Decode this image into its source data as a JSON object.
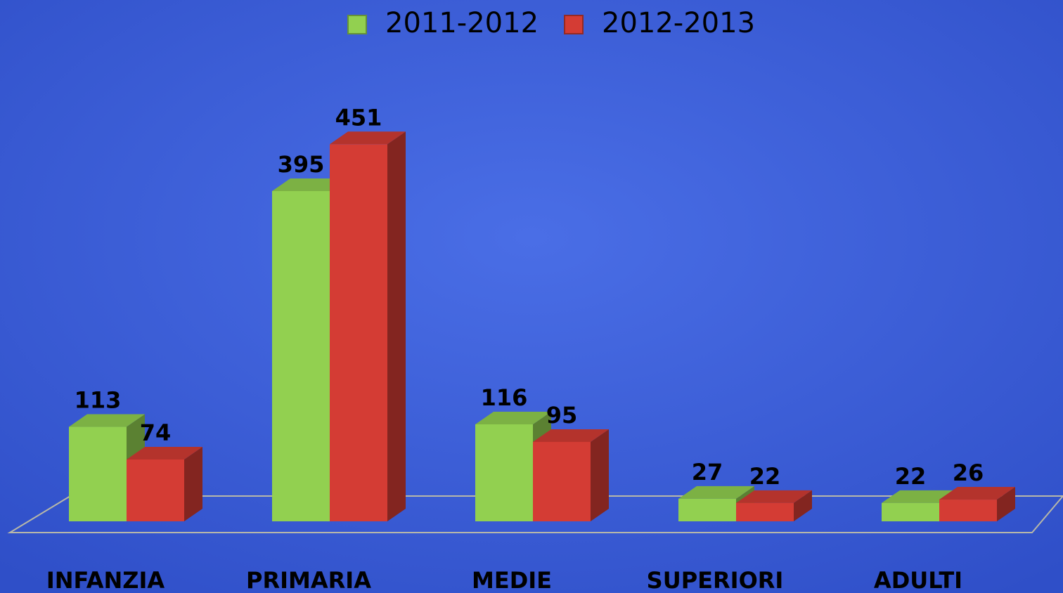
{
  "chart_data": {
    "type": "bar3d",
    "categories": [
      "INFANZIA",
      "PRIMARIA",
      "MEDIE",
      "SUPERIORI",
      "ADULTI"
    ],
    "series": [
      {
        "name": "2011-2012",
        "color": "#92d050",
        "values": [
          113,
          395,
          116,
          27,
          22
        ]
      },
      {
        "name": "2012-2013",
        "color": "#d43c34",
        "values": [
          74,
          451,
          95,
          22,
          26
        ]
      }
    ],
    "legend": "top"
  }
}
